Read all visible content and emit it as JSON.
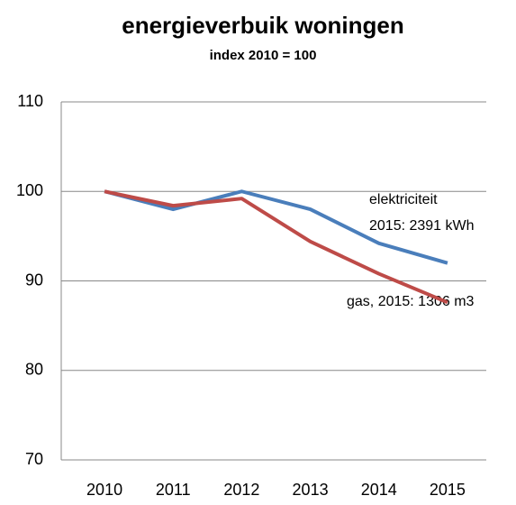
{
  "chart_data": {
    "type": "line",
    "title": "energieverbuik woningen",
    "subtitle": "index 2010 = 100",
    "categories": [
      "2010",
      "2011",
      "2012",
      "2013",
      "2014",
      "2015"
    ],
    "series": [
      {
        "name": "elektriciteit",
        "color": "#4a7ebb",
        "values": [
          100,
          98,
          100,
          98,
          94.2,
          92
        ]
      },
      {
        "name": "gas",
        "color": "#be4b48",
        "values": [
          100,
          98.4,
          99.2,
          94.4,
          90.8,
          87.6
        ]
      }
    ],
    "annotations": [
      "elektriciteit",
      "2015: 2391 kWh",
      "gas, 2015: 1306 m3"
    ],
    "ylim": [
      70,
      110
    ],
    "yticks": [
      70,
      80,
      90,
      100,
      110
    ],
    "grid": true
  }
}
